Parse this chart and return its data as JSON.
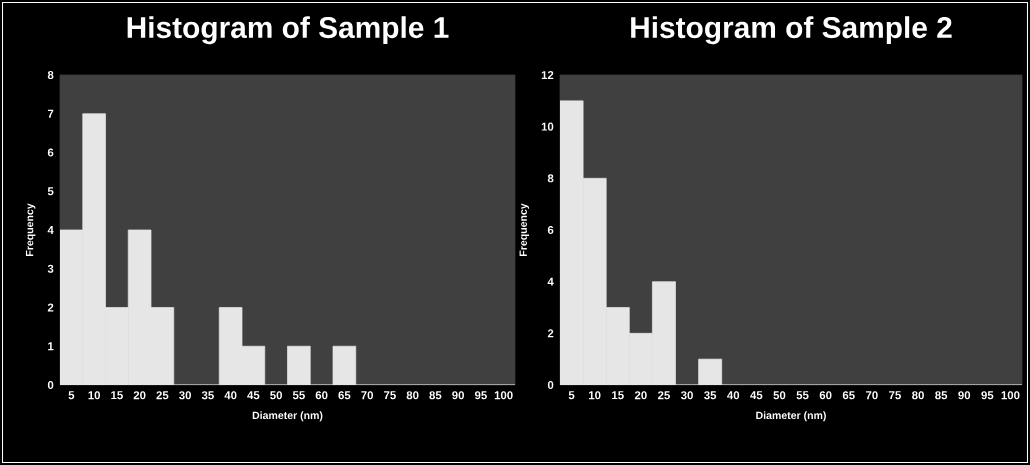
{
  "chart_data": [
    {
      "type": "bar",
      "title": "Histogram of Sample 1",
      "xlabel": "Diameter (nm)",
      "ylabel": "Frequency",
      "categories": [
        "5",
        "10",
        "15",
        "20",
        "25",
        "30",
        "35",
        "40",
        "45",
        "50",
        "55",
        "60",
        "65",
        "70",
        "75",
        "80",
        "85",
        "90",
        "95",
        "100"
      ],
      "values": [
        4,
        7,
        2,
        4,
        2,
        0,
        0,
        2,
        1,
        0,
        1,
        0,
        1,
        0,
        0,
        0,
        0,
        0,
        0,
        0
      ],
      "color": "#e6e6e6",
      "ylim": [
        0,
        8
      ],
      "yticks": [
        0,
        1,
        2,
        3,
        4,
        5,
        6,
        7,
        8
      ]
    },
    {
      "type": "bar",
      "title": "Histogram of Sample 2",
      "xlabel": "Diameter (nm)",
      "ylabel": "Frequency",
      "categories": [
        "5",
        "10",
        "15",
        "20",
        "25",
        "30",
        "35",
        "40",
        "45",
        "50",
        "55",
        "60",
        "65",
        "70",
        "75",
        "80",
        "85",
        "90",
        "95",
        "100"
      ],
      "values": [
        11,
        8,
        3,
        2,
        4,
        0,
        1,
        0,
        0,
        0,
        0,
        0,
        0,
        0,
        0,
        0,
        0,
        0,
        0,
        0
      ],
      "color": "#e6e6e6",
      "ylim": [
        0,
        12
      ],
      "yticks": [
        0,
        2,
        4,
        6,
        8,
        10,
        12
      ]
    }
  ]
}
